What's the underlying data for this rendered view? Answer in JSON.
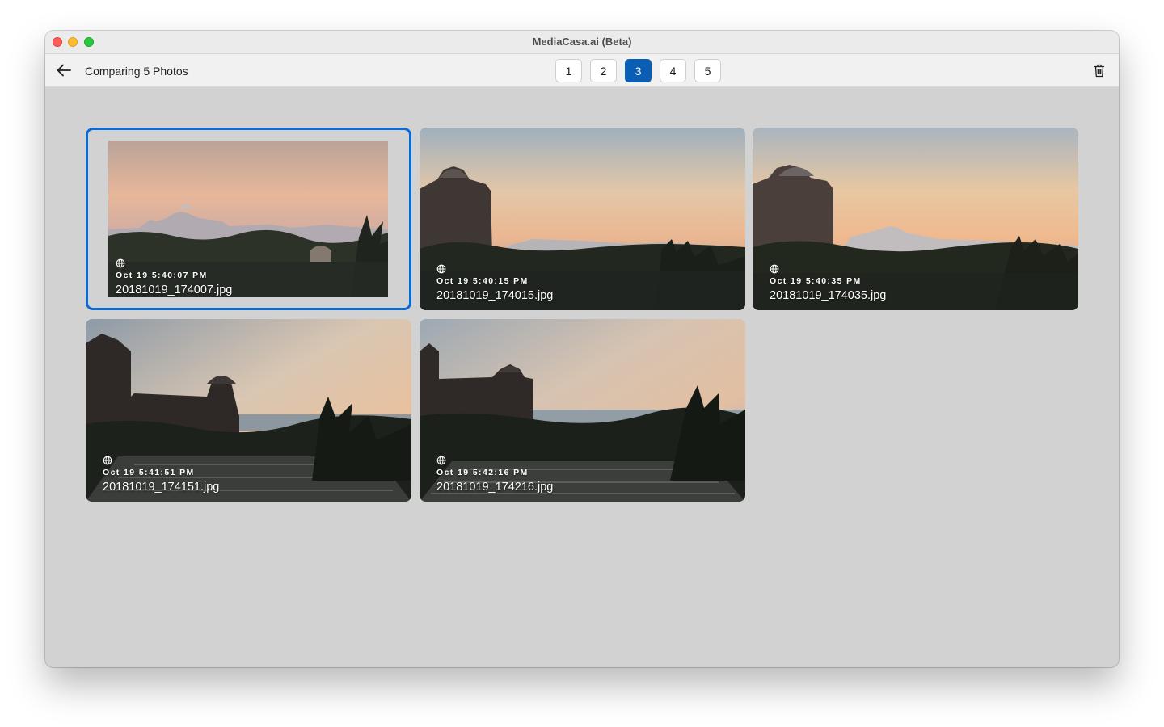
{
  "window": {
    "title": "MediaCasa.ai (Beta)"
  },
  "toolbar": {
    "title": "Comparing 5 Photos",
    "pages": [
      "1",
      "2",
      "3",
      "4",
      "5"
    ],
    "active_page": "3"
  },
  "icons": {
    "back": "arrow-left-icon",
    "trash": "trash-icon",
    "location": "globe-icon"
  },
  "colors": {
    "accent": "#0a5fb4",
    "selection_border": "#0a6bd6",
    "content_bg": "#d2d2d2"
  },
  "photos": [
    {
      "timestamp": "Oct 19 5:40:07 PM",
      "filename": "20181019_174007.jpg",
      "selected": true
    },
    {
      "timestamp": "Oct 19 5:40:15 PM",
      "filename": "20181019_174015.jpg",
      "selected": false
    },
    {
      "timestamp": "Oct 19 5:40:35 PM",
      "filename": "20181019_174035.jpg",
      "selected": false
    },
    {
      "timestamp": "Oct 19 5:41:51 PM",
      "filename": "20181019_174151.jpg",
      "selected": false
    },
    {
      "timestamp": "Oct 19 5:42:16 PM",
      "filename": "20181019_174216.jpg",
      "selected": false
    }
  ]
}
